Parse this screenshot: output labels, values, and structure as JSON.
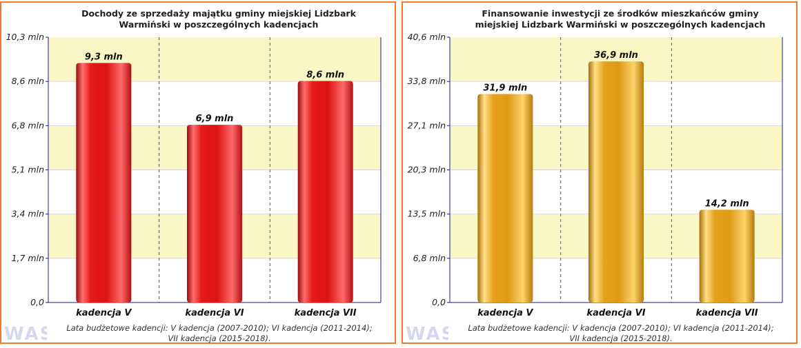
{
  "colors": {
    "border": "#f07b2c",
    "band": "#fbf6c6",
    "axis": "#1a1a8a",
    "red": "#e01818",
    "gold": "#e3a418"
  },
  "logo": {
    "text": "WAS"
  },
  "note": {
    "line1": "Lata budżetowe kadencji: V kadencja (2007-2010); VI kadencja (2011-2014);",
    "line2": "VII kadencja (2015-2018)."
  },
  "chart_data": [
    {
      "type": "bar",
      "title_lines": [
        "Dochody ze sprzedaży majątku gminy miejskiej Lidzbark",
        "Warmiński w poszczególnych kadencjach"
      ],
      "categories": [
        "kadencja V",
        "kadencja VI",
        "kadencja VII"
      ],
      "values": [
        9.3,
        6.9,
        8.6
      ],
      "data_labels": [
        "9,3 mln",
        "6,9 mln",
        "8,6 mln"
      ],
      "y_ticks": [
        "0,0",
        "1,7 mln",
        "3,4 mln",
        "5,1 mln",
        "6,8 mln",
        "8,6 mln",
        "10,3 mln"
      ],
      "ylim": [
        0,
        10.3
      ],
      "bar_color": "red",
      "grid": true
    },
    {
      "type": "bar",
      "title_lines": [
        "Finansowanie inwestycji ze środków mieszkańców gminy",
        "miejskiej Lidzbark Warmiński w poszczególnych kadencjach"
      ],
      "categories": [
        "kadencja V",
        "kadencja VI",
        "kadencja VII"
      ],
      "values": [
        31.9,
        36.9,
        14.2
      ],
      "data_labels": [
        "31,9 mln",
        "36,9 mln",
        "14,2 mln"
      ],
      "y_ticks": [
        "0,0",
        "6,8 mln",
        "13,5 mln",
        "20,3 mln",
        "27,1 mln",
        "33,8 mln",
        "40,6 mln"
      ],
      "ylim": [
        0,
        40.6
      ],
      "bar_color": "gold",
      "grid": true
    }
  ]
}
